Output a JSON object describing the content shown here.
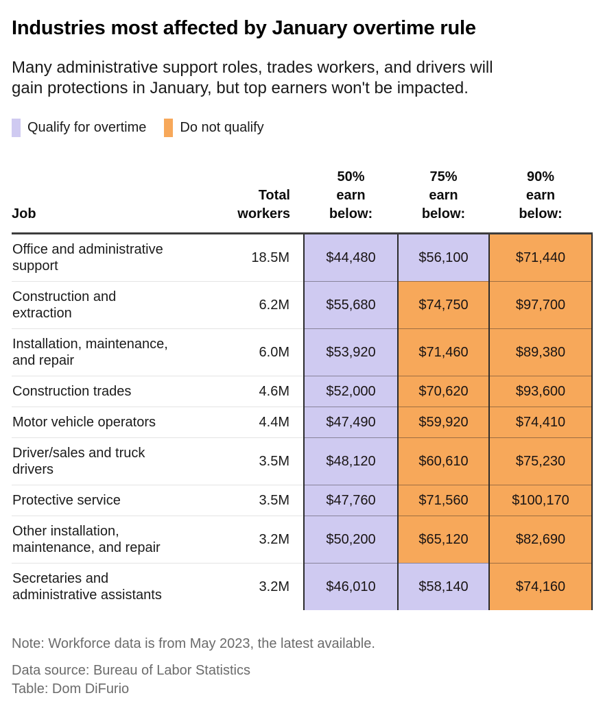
{
  "title": "Industries most affected by January overtime rule",
  "subtitle": "Many administrative support roles, trades workers, and drivers will\ngain protections in January, but top earners won't be impacted.",
  "legend": {
    "qualify_label": "Qualify for overtime",
    "not_qualify_label": "Do not qualify"
  },
  "colors": {
    "qualify": "#cfcaf1",
    "not_qualify": "#f7a85a"
  },
  "chart_data": {
    "type": "table",
    "headers": {
      "job": "Job",
      "workers": "Total\nworkers",
      "p50": "50%\nearn\nbelow:",
      "p75": "75%\nearn\nbelow:",
      "p90": "90%\nearn\nbelow:"
    },
    "rows": [
      {
        "job": "Office and administrative\nsupport",
        "workers": "18.5M",
        "p50": "$44,480",
        "p50_qualify": true,
        "p75": "$56,100",
        "p75_qualify": true,
        "p90": "$71,440",
        "p90_qualify": false
      },
      {
        "job": "Construction and\nextraction",
        "workers": "6.2M",
        "p50": "$55,680",
        "p50_qualify": true,
        "p75": "$74,750",
        "p75_qualify": false,
        "p90": "$97,700",
        "p90_qualify": false
      },
      {
        "job": "Installation, maintenance,\nand repair",
        "workers": "6.0M",
        "p50": "$53,920",
        "p50_qualify": true,
        "p75": "$71,460",
        "p75_qualify": false,
        "p90": "$89,380",
        "p90_qualify": false
      },
      {
        "job": "Construction trades",
        "workers": "4.6M",
        "p50": "$52,000",
        "p50_qualify": true,
        "p75": "$70,620",
        "p75_qualify": false,
        "p90": "$93,600",
        "p90_qualify": false
      },
      {
        "job": "Motor vehicle operators",
        "workers": "4.4M",
        "p50": "$47,490",
        "p50_qualify": true,
        "p75": "$59,920",
        "p75_qualify": false,
        "p90": "$74,410",
        "p90_qualify": false
      },
      {
        "job": "Driver/sales and truck\ndrivers",
        "workers": "3.5M",
        "p50": "$48,120",
        "p50_qualify": true,
        "p75": "$60,610",
        "p75_qualify": false,
        "p90": "$75,230",
        "p90_qualify": false
      },
      {
        "job": "Protective service",
        "workers": "3.5M",
        "p50": "$47,760",
        "p50_qualify": true,
        "p75": "$71,560",
        "p75_qualify": false,
        "p90": "$100,170",
        "p90_qualify": false
      },
      {
        "job": "Other installation,\nmaintenance, and repair",
        "workers": "3.2M",
        "p50": "$50,200",
        "p50_qualify": true,
        "p75": "$65,120",
        "p75_qualify": false,
        "p90": "$82,690",
        "p90_qualify": false
      },
      {
        "job": "Secretaries and\nadministrative assistants",
        "workers": "3.2M",
        "p50": "$46,010",
        "p50_qualify": true,
        "p75": "$58,140",
        "p75_qualify": true,
        "p90": "$74,160",
        "p90_qualify": false
      }
    ]
  },
  "footer": {
    "note": "Note: Workforce data is from May 2023, the latest available.",
    "source": "Data source: Bureau of Labor Statistics",
    "credit": "Table: Dom DiFurio"
  }
}
